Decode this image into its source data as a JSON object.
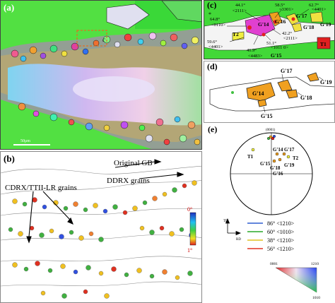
{
  "panel_a": {
    "label": "(a)",
    "box_label": "c",
    "scalebar": "50μm"
  },
  "panel_b": {
    "label": "(b)",
    "annotations": [
      "Original GB",
      "DDRX grains",
      "CDRX/TTII-LR grains"
    ],
    "colorbar": {
      "top": "0°",
      "bottom": "1°"
    }
  },
  "panel_c": {
    "label": "(c)",
    "angle_labels": [
      {
        "angle": "44.1°",
        "axis": "<2111>"
      },
      {
        "angle": "58.5°",
        "axis": "<3301>"
      },
      {
        "angle": "62.7°",
        "axis": "<4401>"
      },
      {
        "angle": "64.8°",
        "axis": "<0110>"
      },
      {
        "angle": "42.2°",
        "axis": "<2111>"
      },
      {
        "angle": "59.6°",
        "axis": "<4401>"
      },
      {
        "angle": "51.1°",
        "axis": "<1011 0>"
      },
      {
        "angle": "41.9°",
        "axis": "<4483>"
      }
    ],
    "grain_labels": [
      "T2",
      "G'14",
      "G'16",
      "G'17",
      "G'18",
      "G'19",
      "G'15",
      "T1"
    ],
    "marker": "*"
  },
  "panel_d": {
    "label": "(d)",
    "grain_labels": [
      "G'17",
      "G'14",
      "G'18",
      "G'19",
      "G'15"
    ]
  },
  "panel_e": {
    "label": "(e)",
    "pole": "(0001)",
    "pole_labels": [
      "G'14",
      "G'17",
      "T1",
      "G'15",
      "G'18",
      "T2",
      "G'16",
      "G'19"
    ],
    "axes": {
      "td": "TD",
      "rd": "RD"
    },
    "legend": [
      {
        "text": "86° <1210>",
        "color": "#2f5fd0"
      },
      {
        "text": "60° <1010>",
        "color": "#29a829"
      },
      {
        "text": "38° <1210>",
        "color": "#e0c020"
      },
      {
        "text": "56° <1210>",
        "color": "#e03020"
      }
    ],
    "ipf_key": {
      "a": "0001",
      "b": "1210",
      "c": "1010"
    }
  }
}
